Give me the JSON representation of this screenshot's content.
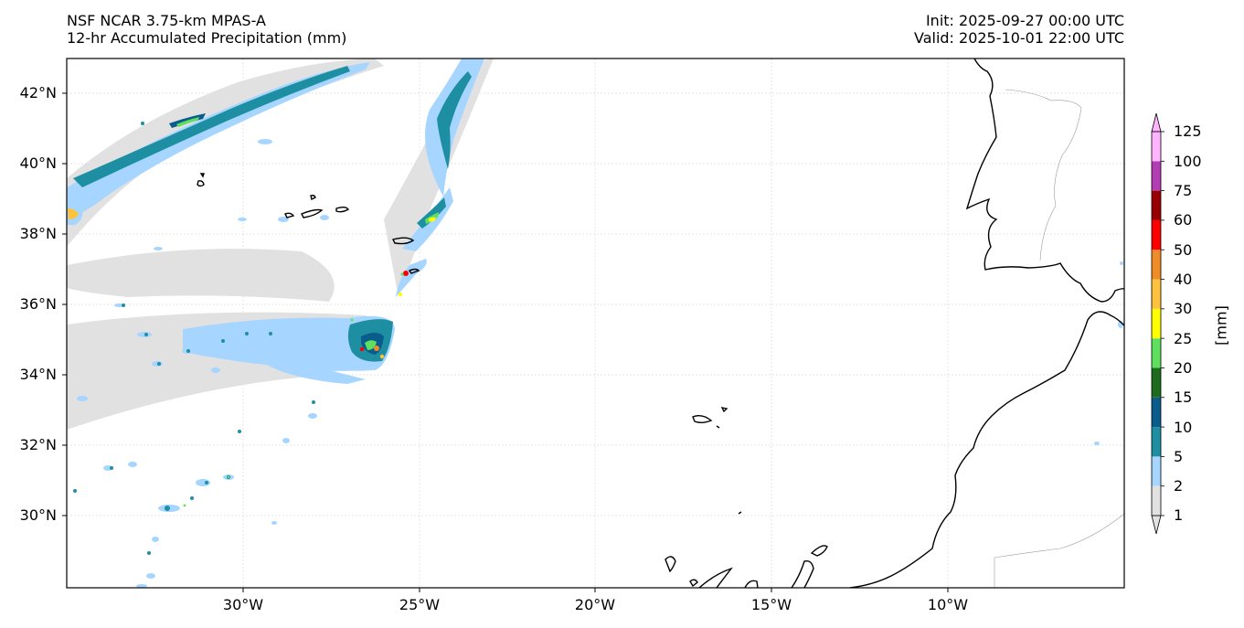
{
  "title": {
    "left_line1": "NSF NCAR 3.75-km MPAS-A",
    "left_line2": "12-hr Accumulated Precipitation (mm)",
    "right_line1": "Init: 2025-09-27 00:00 UTC",
    "right_line2": "Valid: 2025-10-01 22:00 UTC"
  },
  "map": {
    "lat_labels": [
      "42°N",
      "40°N",
      "38°N",
      "36°N",
      "34°N",
      "32°N",
      "30°N"
    ],
    "lon_labels": [
      "30°W",
      "25°W",
      "20°W",
      "15°W",
      "10°W"
    ],
    "gridlines": true
  },
  "colorbar": {
    "unit": "[mm]",
    "extend": "both",
    "levels": [
      "1",
      "2",
      "5",
      "10",
      "15",
      "20",
      "25",
      "30",
      "40",
      "50",
      "60",
      "75",
      "100",
      "125"
    ],
    "colors": [
      "#e1e1e1",
      "#a6d5ff",
      "#1e8fa3",
      "#0a5c8c",
      "#1e6b1e",
      "#5ee05e",
      "#ffff00",
      "#ffc23c",
      "#f08c28",
      "#ff0000",
      "#990000",
      "#b43cb4",
      "#ffb4ff"
    ]
  }
}
